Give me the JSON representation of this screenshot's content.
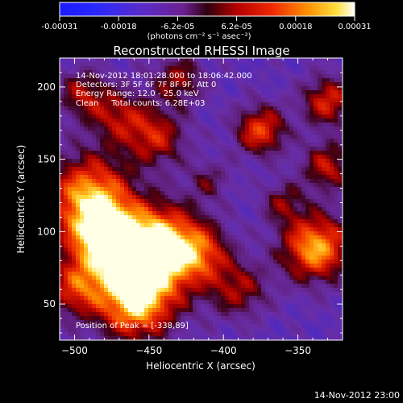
{
  "colorbar": {
    "tick_labels": [
      "-0.00031",
      "-0.00018",
      "-6.2e-05",
      "6.2e-05",
      "0.00018",
      "0.00031"
    ],
    "unit_label": "(photons cm⁻² s⁻¹ asec⁻²)",
    "range": [
      -0.00031,
      0.00031
    ]
  },
  "chart_data": {
    "type": "heatmap",
    "title": "Reconstructed RHESSI Image",
    "xlabel": "Heliocentric X (arcsec)",
    "ylabel": "Heliocentric Y (arcsec)",
    "xlim": [
      -510,
      -320
    ],
    "ylim": [
      25,
      220
    ],
    "x_ticks": [
      -500,
      -450,
      -400,
      -350
    ],
    "y_ticks": [
      50,
      100,
      150,
      200
    ],
    "annotations": [
      "14-Nov-2012 18:01:28.000 to 18:06:42.000",
      "Detectors: 3F 5F 6F 7F 8F 9F, Att 0",
      "Energy Range: 12.0 - 25.0 keV",
      "Clean     Total counts: 6.28E+03"
    ],
    "peak_label": "Position of Peak = [-338,89]",
    "peak_position": [
      -338,
      89
    ],
    "colormap": "blue-purple-red-yellow-white",
    "grid": false
  },
  "footer": {
    "timestamp": "14-Nov-2012 23:00"
  }
}
